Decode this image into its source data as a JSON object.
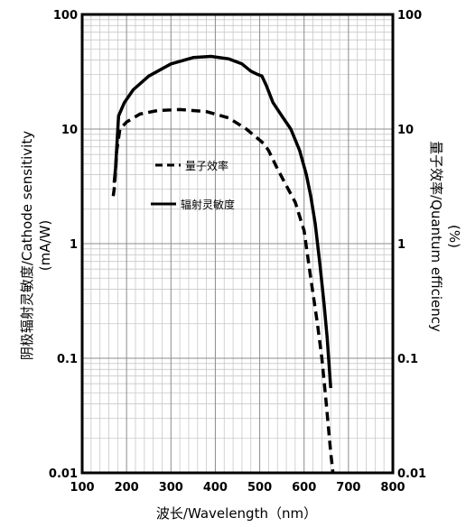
{
  "chart_data": {
    "type": "line",
    "x_label": "波长/Wavelength（nm）",
    "y_label_left_1": "阴极辐射灵敏度/Cathode sensitivity",
    "y_label_left_2": "(mA/W)",
    "y_label_right_1": "量子效率/Quantum efficiency",
    "y_label_right_2": "(%)",
    "xlim": [
      100,
      800
    ],
    "ylim": [
      0.01,
      100
    ],
    "y_scale": "log",
    "x_ticks": [
      100,
      200,
      300,
      400,
      500,
      600,
      700,
      800
    ],
    "y_ticks": [
      0.01,
      0.1,
      1,
      10,
      100
    ],
    "y_tick_labels": [
      "0.01",
      "0.1",
      "1",
      "10",
      "100"
    ],
    "grid": true,
    "series": [
      {
        "name": "量子效率",
        "style": "dashed",
        "color": "#000000",
        "x": [
          170,
          173,
          178,
          185,
          200,
          230,
          270,
          320,
          380,
          430,
          470,
          500,
          510,
          520,
          540,
          560,
          580,
          600,
          615,
          630,
          640,
          650,
          660,
          665
        ],
        "y": [
          2.6,
          3.2,
          6.5,
          10,
          11.5,
          13.5,
          14.5,
          14.8,
          14.2,
          12.5,
          10,
          8,
          7.4,
          6.5,
          4.5,
          3.2,
          2.3,
          1.3,
          0.5,
          0.2,
          0.1,
          0.04,
          0.015,
          0.01
        ]
      },
      {
        "name": "辐射灵敏度",
        "style": "solid",
        "color": "#000000",
        "x": [
          172,
          175,
          182,
          195,
          215,
          250,
          300,
          350,
          390,
          430,
          460,
          480,
          495,
          505,
          515,
          530,
          550,
          570,
          590,
          605,
          615,
          625,
          635,
          645,
          652,
          660
        ],
        "y": [
          3.4,
          4.5,
          13,
          17,
          22,
          29,
          37,
          42,
          43,
          41,
          37,
          32,
          30,
          29,
          24,
          17,
          13,
          10,
          6.5,
          4,
          2.6,
          1.5,
          0.7,
          0.3,
          0.15,
          0.055
        ]
      }
    ]
  }
}
